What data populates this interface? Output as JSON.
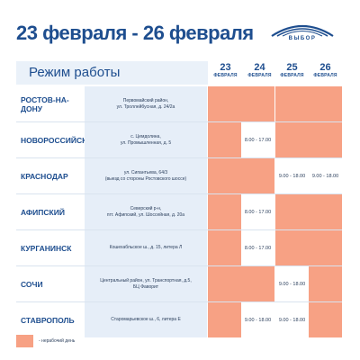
{
  "header": {
    "title": "23 февраля - 26 февраля",
    "logo_text": "ВЫБОР"
  },
  "table": {
    "schedule_label": "Режим работы",
    "days": [
      {
        "num": "23",
        "month": "ФЕВРАЛЯ"
      },
      {
        "num": "24",
        "month": "ФЕВРАЛЯ"
      },
      {
        "num": "25",
        "month": "ФЕВРАЛЯ"
      },
      {
        "num": "26",
        "month": "ФЕВРАЛЯ"
      }
    ],
    "rows": [
      {
        "city": "РОСТОВ-НА-ДОНУ",
        "address": [
          "Первомайский район,",
          "ул. Троллейбусная, д. 24/2а"
        ],
        "cells": [
          "",
          "",
          "",
          ""
        ],
        "off": [
          true,
          true,
          true,
          true
        ]
      },
      {
        "city": "НОВОРОССИЙСК",
        "address": [
          "с. Цемдолина,",
          "ул. Промышленная, д. 5"
        ],
        "cells": [
          "",
          "8.00 - 17.00",
          "",
          ""
        ],
        "off": [
          true,
          false,
          true,
          true
        ]
      },
      {
        "city": "КРАСНОДАР",
        "address": [
          "ул. Сипантьева, 64/3",
          "(выезд со стороны Ростовского шоссе)"
        ],
        "cells": [
          "",
          "",
          "9.00 - 18.00",
          "9.00 - 18.00"
        ],
        "off": [
          true,
          true,
          false,
          false
        ]
      },
      {
        "city": "АФИПСКИЙ",
        "address": [
          "Северский р-н,",
          "пгт. Афипский, ул. Шоссейная, д. 20а"
        ],
        "cells": [
          "",
          "8.00 - 17.00",
          "",
          ""
        ],
        "off": [
          true,
          false,
          true,
          true
        ]
      },
      {
        "city": "КУРГАНИНСК",
        "address": [
          "Кошехабльское ш., д. 15, литера Л"
        ],
        "cells": [
          "",
          "8.00 - 17.00",
          "",
          ""
        ],
        "off": [
          true,
          false,
          true,
          true
        ]
      },
      {
        "city": "СОЧИ",
        "address": [
          "Центральный район, ул. Транспортная, д.5,",
          "БЦ Фаворит"
        ],
        "cells": [
          "",
          "",
          "9.00 - 18.00",
          ""
        ],
        "off": [
          true,
          true,
          false,
          true
        ]
      },
      {
        "city": "СТАВРОПОЛЬ",
        "address": [
          "Старомарьевское ш., 6, литера Е"
        ],
        "cells": [
          "",
          "9.00 - 18.00",
          "9.00 - 18.00",
          ""
        ],
        "off": [
          true,
          false,
          false,
          true
        ]
      }
    ]
  },
  "legend": {
    "text": "- нерабочий день",
    "color": "#f7a184"
  },
  "colors": {
    "brand_blue": "#1e4e8f",
    "off_day": "#f7a184",
    "address_bg": "#e6eef8"
  }
}
